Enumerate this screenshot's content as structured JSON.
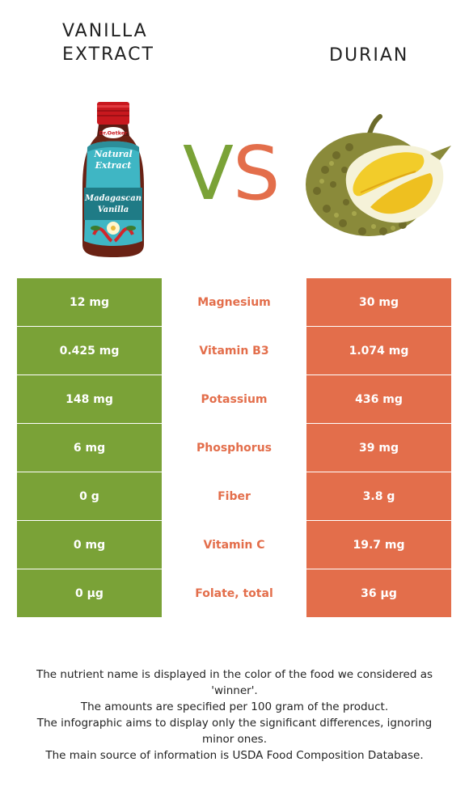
{
  "left_food": {
    "title_line1": "VANILLA",
    "title_line2": "EXTRACT",
    "color": "#7aa237"
  },
  "right_food": {
    "title": "DURIAN",
    "color": "#e36e4b"
  },
  "vs": {
    "v": "V",
    "s": "S"
  },
  "bottle_label": {
    "brand": "Dr.Oetker",
    "line1": "Natural",
    "line2": "Extract",
    "line3": "Madagascan",
    "line4": "Vanilla"
  },
  "rows": [
    {
      "left": "12 mg",
      "nutrient": "Magnesium",
      "right": "30 mg",
      "winner": "right"
    },
    {
      "left": "0.425 mg",
      "nutrient": "Vitamin B3",
      "right": "1.074 mg",
      "winner": "right"
    },
    {
      "left": "148 mg",
      "nutrient": "Potassium",
      "right": "436 mg",
      "winner": "right"
    },
    {
      "left": "6 mg",
      "nutrient": "Phosphorus",
      "right": "39 mg",
      "winner": "right"
    },
    {
      "left": "0 g",
      "nutrient": "Fiber",
      "right": "3.8 g",
      "winner": "right"
    },
    {
      "left": "0 mg",
      "nutrient": "Vitamin C",
      "right": "19.7 mg",
      "winner": "right"
    },
    {
      "left": "0 µg",
      "nutrient": "Folate, total",
      "right": "36 µg",
      "winner": "right"
    }
  ],
  "footer": {
    "line1": "The nutrient name is displayed in the color of the food we considered as 'winner'.",
    "line2": "The amounts are specified per 100 gram of the product.",
    "line3": "The infographic aims to display only the significant differences, ignoring minor ones.",
    "line4": "The main source of information is USDA Food Composition Database."
  }
}
